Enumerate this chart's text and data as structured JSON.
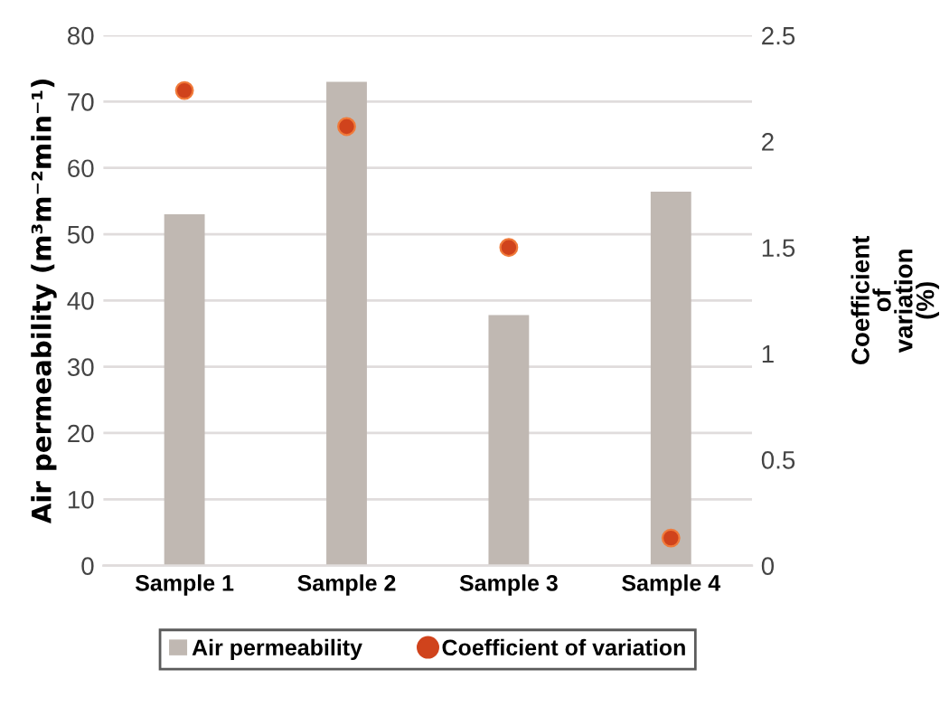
{
  "chart_data": {
    "type": "bar",
    "categories": [
      "Sample 1",
      "Sample 2",
      "Sample 3",
      "Sample 4"
    ],
    "series": [
      {
        "name": "Air permeability",
        "color": "#c0b8b2",
        "values": [
          53,
          73,
          37.8,
          56.4
        ]
      },
      {
        "name": "Coefficient of variation",
        "type": "scatter",
        "axis": "y2",
        "color": "#d0431c",
        "values": [
          2.24,
          2.07,
          1.5,
          0.13
        ]
      }
    ],
    "ylabel": "Air permeability (m³m⁻²min⁻¹)",
    "y2label": "Coefficient\nof\nvariation\n(%)",
    "ylim": [
      0,
      80
    ],
    "yticks": [
      0,
      10,
      20,
      30,
      40,
      50,
      60,
      70,
      80
    ],
    "y2lim": [
      0,
      2.5
    ],
    "y2ticks": [
      0,
      0.5,
      1,
      1.5,
      2,
      2.5
    ],
    "grid": "y",
    "legend": "bottom",
    "marker": "circle"
  }
}
